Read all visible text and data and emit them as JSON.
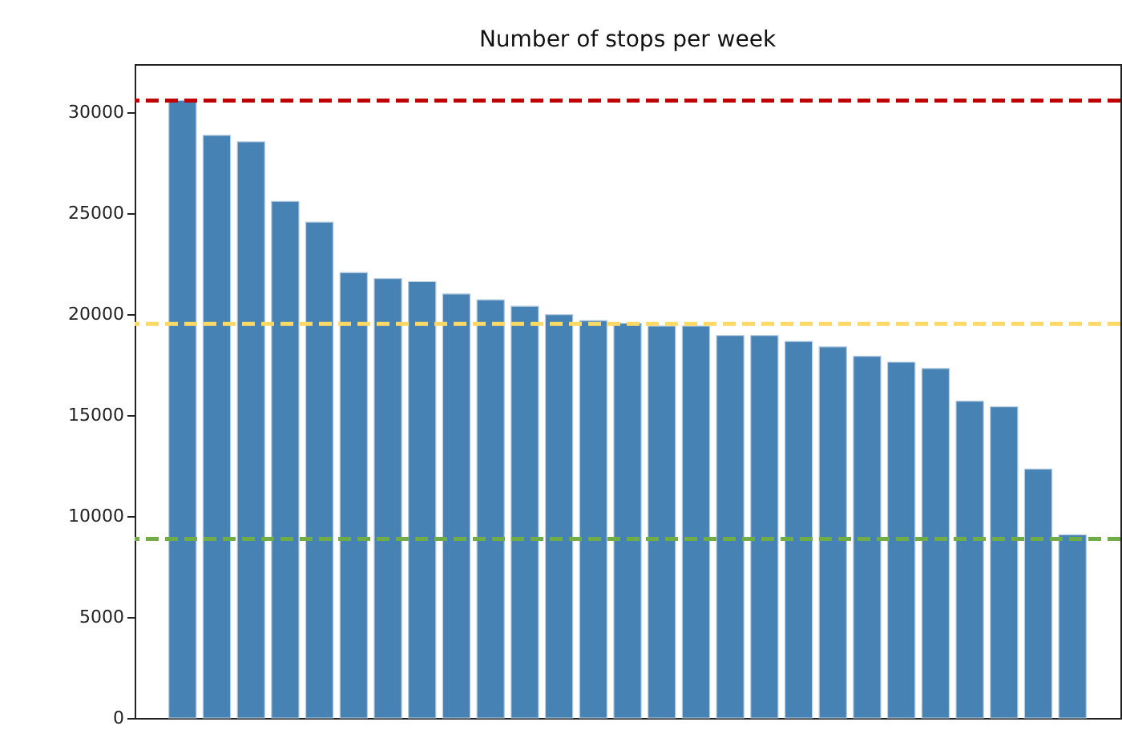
{
  "chart_data": {
    "type": "bar",
    "title": "Number of stops per week",
    "categories": [
      null,
      null,
      null,
      null,
      null,
      null,
      null,
      null,
      null,
      null,
      null,
      null,
      null,
      null,
      null,
      null,
      null,
      null,
      null,
      null,
      null,
      null,
      null,
      null,
      null,
      null,
      null
    ],
    "values": [
      30600,
      28870,
      28550,
      25600,
      24570,
      22070,
      21770,
      21620,
      21010,
      20720,
      20400,
      19990,
      19690,
      19560,
      19420,
      19420,
      18950,
      18950,
      18660,
      18390,
      17920,
      17630,
      17320,
      15700,
      15420,
      12330,
      9080
    ],
    "color": "#4682b4",
    "ylim": [
      0,
      32400
    ],
    "yticks": [
      0,
      5000,
      10000,
      15000,
      20000,
      25000,
      30000
    ],
    "ref_lines": [
      {
        "axis": "y",
        "value": 30590,
        "color": "#c00000",
        "line_style": "dashed"
      },
      {
        "axis": "y",
        "value": 19530,
        "color": "#ffd966",
        "line_style": "dashed"
      },
      {
        "axis": "y",
        "value": 8870,
        "color": "#70ad47",
        "line_style": "dashed"
      }
    ],
    "grid": false,
    "tick_labels": "y"
  }
}
